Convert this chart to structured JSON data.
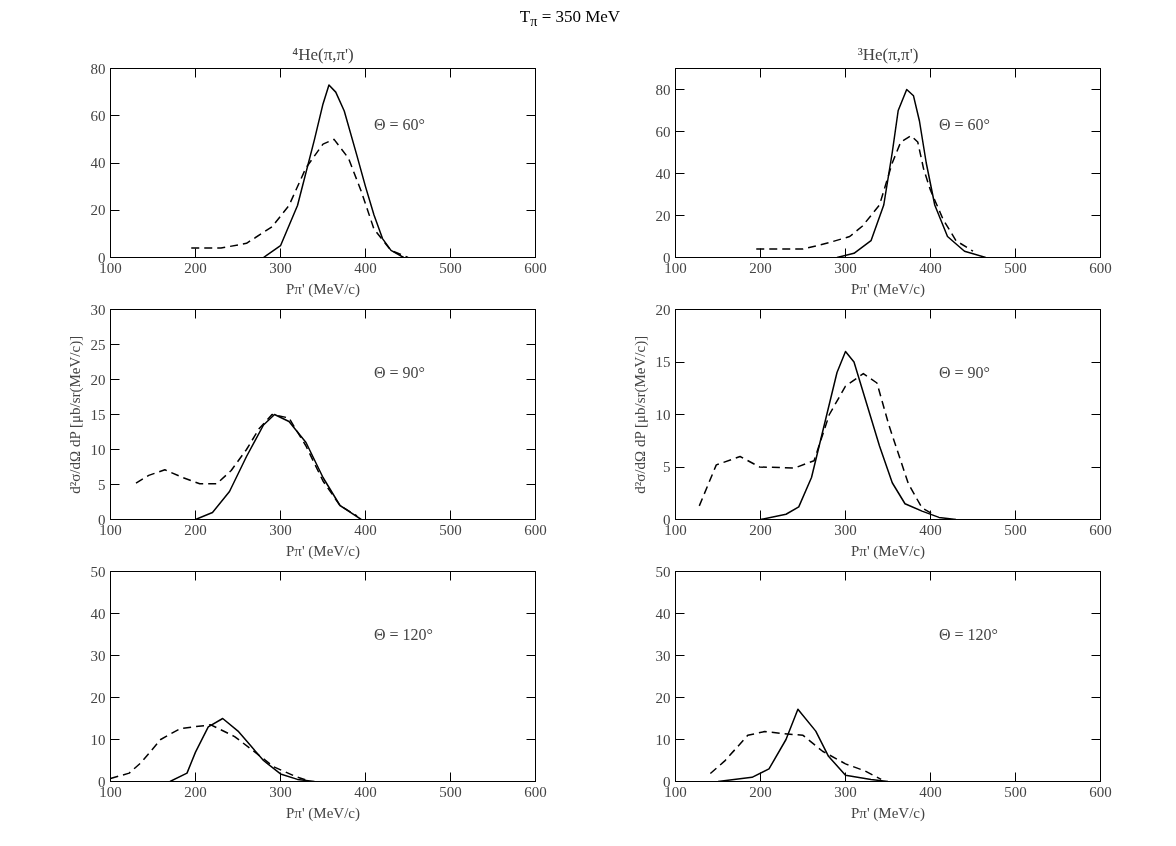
{
  "chart_data": [
    {
      "type": "line",
      "title": "⁴He(π,π')",
      "subtitle": "T$_{π}$ = 350 MeV",
      "xlabel": "Pπ' (MeV/c)",
      "annotations": [
        "Θ =  60°"
      ],
      "xlim": [
        100,
        600
      ],
      "xticks": [
        100,
        200,
        300,
        400,
        500,
        600
      ],
      "ylim": [
        0,
        80
      ],
      "yticks": [
        0,
        20,
        40,
        60,
        80
      ],
      "grid": false,
      "series": [
        {
          "color": "#000000",
          "line_style": "solid",
          "x": [
            280,
            300,
            320,
            340,
            350,
            357,
            365,
            375,
            390,
            400,
            410,
            420,
            430,
            445
          ],
          "values": [
            0,
            5,
            22,
            50,
            65,
            73,
            70,
            62,
            43,
            30,
            18,
            8,
            3,
            0
          ]
        },
        {
          "color": "#000000",
          "line_style": "dashed",
          "x": [
            195,
            230,
            260,
            290,
            310,
            330,
            350,
            363,
            380,
            395,
            410,
            430,
            450
          ],
          "values": [
            4,
            4,
            6,
            13,
            22,
            38,
            48,
            50,
            42,
            28,
            12,
            3,
            0
          ]
        }
      ]
    },
    {
      "type": "line",
      "title": "³He(π,π')",
      "xlabel": "Pπ' (MeV/c)",
      "annotations": [
        "Θ =  60°"
      ],
      "xlim": [
        100,
        600
      ],
      "xticks": [
        100,
        200,
        300,
        400,
        500,
        600
      ],
      "ylim": [
        0,
        90
      ],
      "yticks": [
        0,
        20,
        40,
        60,
        80
      ],
      "grid": false,
      "series": [
        {
          "color": "#000000",
          "line_style": "solid",
          "x": [
            290,
            310,
            330,
            345,
            355,
            362,
            372,
            380,
            387,
            395,
            405,
            420,
            440,
            465
          ],
          "values": [
            0,
            2,
            8,
            25,
            50,
            70,
            80,
            77,
            65,
            45,
            25,
            10,
            3,
            0
          ]
        },
        {
          "color": "#000000",
          "line_style": "dashed",
          "x": [
            195,
            220,
            250,
            280,
            305,
            320,
            340,
            355,
            365,
            377,
            385,
            392,
            400,
            415,
            430,
            450
          ],
          "values": [
            4,
            4,
            4,
            7,
            10,
            15,
            25,
            45,
            55,
            58,
            55,
            42,
            32,
            18,
            8,
            3
          ]
        }
      ]
    },
    {
      "type": "line",
      "xlabel": "Pπ' (MeV/c)",
      "ylabel": "d²σ/dΩ dP [μb/sr(MeV/c)]",
      "annotations": [
        "Θ =  90°"
      ],
      "xlim": [
        100,
        600
      ],
      "xticks": [
        100,
        200,
        300,
        400,
        500,
        600
      ],
      "ylim": [
        0,
        30
      ],
      "yticks": [
        0,
        5,
        10,
        15,
        20,
        25,
        30
      ],
      "grid": false,
      "series": [
        {
          "color": "#000000",
          "line_style": "solid",
          "x": [
            200,
            220,
            240,
            260,
            280,
            293,
            310,
            330,
            350,
            370,
            395
          ],
          "values": [
            0,
            1,
            4,
            9,
            13.5,
            15,
            14,
            11,
            6,
            2,
            0
          ]
        },
        {
          "color": "#000000",
          "line_style": "dashed",
          "x": [
            130,
            145,
            164,
            185,
            205,
            225,
            242,
            260,
            275,
            290,
            310,
            330,
            350,
            370,
            390
          ],
          "values": [
            5.2,
            6.3,
            7.1,
            6,
            5.1,
            5.1,
            7,
            10,
            13,
            15,
            14.5,
            10.5,
            5.5,
            2,
            0.5
          ]
        }
      ]
    },
    {
      "type": "line",
      "xlabel": "Pπ' (MeV/c)",
      "ylabel": "d²σ/dΩ dP [μb/sr(MeV/c)]",
      "annotations": [
        "Θ =  90°"
      ],
      "xlim": [
        100,
        600
      ],
      "xticks": [
        100,
        200,
        300,
        400,
        500,
        600
      ],
      "ylim": [
        0,
        20
      ],
      "yticks": [
        0,
        5,
        10,
        15,
        20
      ],
      "grid": false,
      "series": [
        {
          "color": "#000000",
          "line_style": "solid",
          "x": [
            200,
            230,
            245,
            260,
            275,
            290,
            300,
            310,
            325,
            340,
            355,
            370,
            390,
            410,
            430
          ],
          "values": [
            0,
            0.5,
            1.2,
            4,
            9,
            14,
            16,
            15,
            11,
            7,
            3.5,
            1.5,
            0.8,
            0.2,
            0
          ]
        },
        {
          "color": "#000000",
          "line_style": "dashed",
          "x": [
            128,
            148,
            176,
            199,
            240,
            263,
            281,
            300,
            321,
            337,
            351,
            374,
            390,
            401
          ],
          "values": [
            1.3,
            5.2,
            6,
            5,
            4.9,
            5.6,
            10,
            12.7,
            13.9,
            13,
            9,
            3.4,
            1.1,
            0.6
          ]
        }
      ]
    },
    {
      "type": "line",
      "xlabel": "Pπ' (MeV/c)",
      "annotations": [
        "Θ =  120°"
      ],
      "xlim": [
        100,
        600
      ],
      "xticks": [
        100,
        200,
        300,
        400,
        500,
        600
      ],
      "ylim": [
        0,
        50
      ],
      "yticks": [
        0,
        10,
        20,
        30,
        40,
        50
      ],
      "grid": false,
      "series": [
        {
          "color": "#000000",
          "line_style": "solid",
          "x": [
            170,
            190,
            200,
            215,
            232,
            250,
            265,
            280,
            300,
            320,
            340
          ],
          "values": [
            0,
            2,
            7,
            13,
            15,
            12,
            8.5,
            5,
            1.8,
            0.5,
            0
          ]
        },
        {
          "color": "#000000",
          "line_style": "dashed",
          "x": [
            100,
            122,
            136,
            159,
            182,
            218,
            246,
            270,
            292,
            319,
            335
          ],
          "values": [
            0.7,
            2,
            4.5,
            10,
            12.6,
            13.5,
            10.7,
            7,
            3.5,
            1.1,
            0
          ]
        }
      ]
    },
    {
      "type": "line",
      "xlabel": "Pπ' (MeV/c)",
      "annotations": [
        "Θ =  120°"
      ],
      "xlim": [
        100,
        600
      ],
      "xticks": [
        100,
        200,
        300,
        400,
        500,
        600
      ],
      "ylim": [
        0,
        50
      ],
      "yticks": [
        0,
        10,
        20,
        30,
        40,
        50
      ],
      "grid": false,
      "series": [
        {
          "color": "#000000",
          "line_style": "solid",
          "x": [
            150,
            190,
            210,
            230,
            244,
            265,
            280,
            300,
            330,
            350
          ],
          "values": [
            0,
            1,
            3,
            10,
            17.2,
            12,
            6,
            1.5,
            0.5,
            0
          ]
        },
        {
          "color": "#000000",
          "line_style": "dashed",
          "x": [
            141,
            158,
            185,
            205,
            227,
            250,
            273,
            300,
            323,
            342
          ],
          "values": [
            1.9,
            4.9,
            11,
            11.9,
            11.4,
            11,
            7.2,
            4.2,
            2.5,
            0.5
          ]
        }
      ]
    }
  ]
}
